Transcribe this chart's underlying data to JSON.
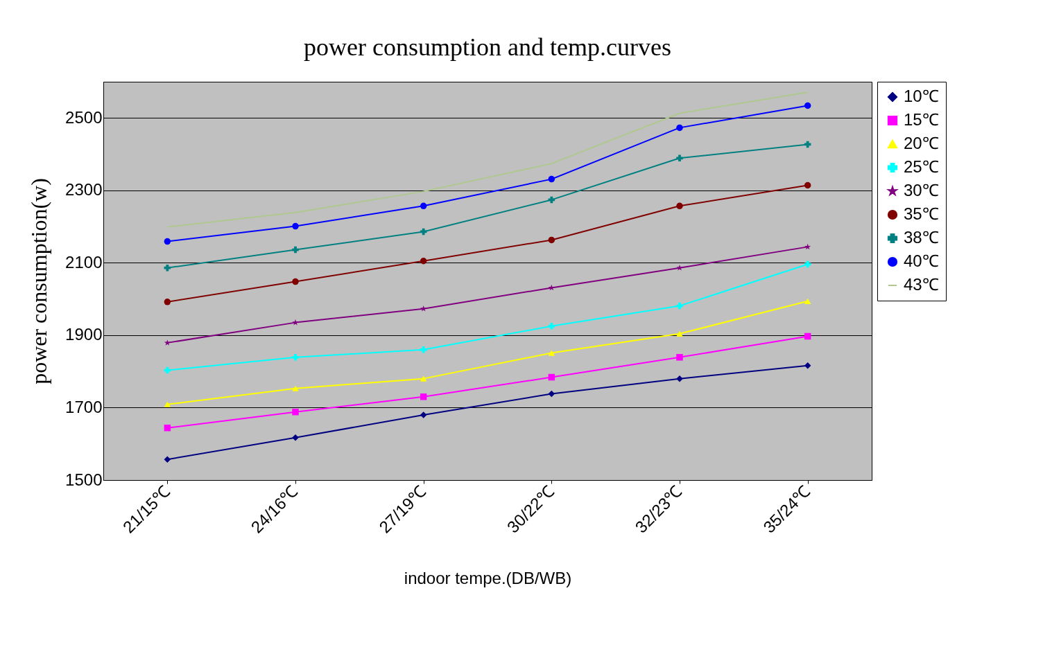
{
  "chart_data": {
    "type": "line",
    "title": "power consumption and temp.curves",
    "xlabel": "indoor tempe.(DB/WB)",
    "ylabel": "power consumption(w)",
    "categories": [
      "21/15℃",
      "24/16℃",
      "27/19℃",
      "30/22℃",
      "32/23℃",
      "35/24℃"
    ],
    "ylim": [
      1500,
      2600
    ],
    "yticks": [
      1500,
      1700,
      1900,
      2100,
      2300,
      2500
    ],
    "grid": "y",
    "legend": "right",
    "series": [
      {
        "name": "10℃",
        "color": "#000080",
        "marker": "diamond",
        "values": [
          1557,
          1617,
          1680,
          1738,
          1780,
          1816
        ]
      },
      {
        "name": "15℃",
        "color": "#ff00ff",
        "marker": "square",
        "values": [
          1644,
          1688,
          1730,
          1784,
          1839,
          1897
        ]
      },
      {
        "name": "20℃",
        "color": "#ffff00",
        "marker": "triangle",
        "values": [
          1709,
          1753,
          1780,
          1851,
          1904,
          1994
        ]
      },
      {
        "name": "25℃",
        "color": "#00ffff",
        "marker": "cross",
        "values": [
          1803,
          1839,
          1860,
          1925,
          1981,
          2096
        ]
      },
      {
        "name": "30℃",
        "color": "#800080",
        "marker": "star",
        "values": [
          1879,
          1935,
          1973,
          2031,
          2086,
          2144
        ]
      },
      {
        "name": "35℃",
        "color": "#800000",
        "marker": "circle",
        "values": [
          1992,
          2048,
          2105,
          2163,
          2257,
          2314
        ]
      },
      {
        "name": "38℃",
        "color": "#008080",
        "marker": "cross",
        "values": [
          2086,
          2136,
          2186,
          2274,
          2389,
          2427
        ]
      },
      {
        "name": "40℃",
        "color": "#0000ff",
        "marker": "circle",
        "values": [
          2159,
          2201,
          2257,
          2331,
          2473,
          2534
        ]
      },
      {
        "name": "43℃",
        "color": "#b0c890",
        "marker": "none",
        "values": [
          2199,
          2239,
          2297,
          2374,
          2513,
          2571
        ]
      }
    ]
  }
}
